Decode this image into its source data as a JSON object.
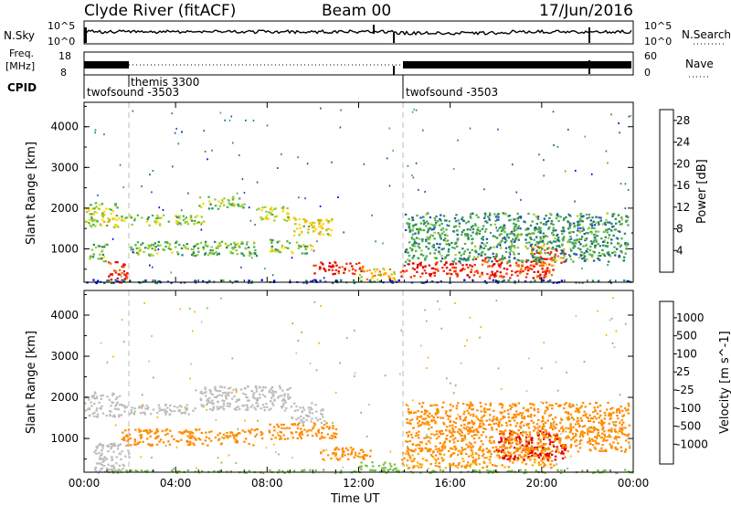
{
  "header": {
    "station": "Clyde River (fitACF)",
    "beam": "Beam 00",
    "date": "17/Jun/2016"
  },
  "strips": {
    "nsky_label": "N.Sky",
    "nsearch_label": "N.Search",
    "nsky_ticks": [
      "10^5",
      "10^0"
    ],
    "nsearch_ticks": [
      "10^5",
      "10^0"
    ],
    "freq_label": "Freq.",
    "freq_unit": "[MHz]",
    "freq_ticks": [
      "18",
      "8"
    ],
    "nave_label": "Nave",
    "nave_ticks": [
      "60",
      "0"
    ],
    "cpid_label": "CPID",
    "cpid_segments": [
      {
        "label": "twofsound -3503",
        "start_hour": 0.0
      },
      {
        "label": "themis 3300",
        "start_hour": 2.0
      },
      {
        "label": "twofsound -3503",
        "start_hour": 13.8
      }
    ]
  },
  "colors": {
    "power_scale": [
      "#0000ee",
      "#2255aa",
      "#2a8a5a",
      "#4caf50",
      "#9acd32",
      "#ffd700",
      "#ffa500",
      "#ff6a00",
      "#ff2a00",
      "#e00000"
    ],
    "velocity_scale": [
      "#1040c0",
      "#2e6fd6",
      "#2e8b57",
      "#7cc04c",
      "#bdbdbd",
      "#bdbdbd",
      "#ffb000",
      "#ff8c00",
      "#ff5a00",
      "#e00000"
    ]
  },
  "chart_data": [
    {
      "type": "heatmap",
      "title": "",
      "xlabel": "Time UT",
      "ylabel": "Slant Range [km]",
      "xlim": [
        0,
        24
      ],
      "ylim": [
        180,
        4600
      ],
      "x_ticks": [
        "00:00",
        "04:00",
        "08:00",
        "12:00",
        "16:00",
        "20:00",
        "00:00"
      ],
      "y_ticks": [
        1000,
        2000,
        3000,
        4000
      ],
      "colorbar": {
        "label": "Power [dB]",
        "ticks": [
          4,
          8,
          12,
          16,
          20,
          24,
          28
        ],
        "range": [
          0,
          30
        ]
      },
      "echo_bands": [
        {
          "t0": 0.0,
          "t1": 1.5,
          "r0": 1550,
          "r1": 2150,
          "value": 14
        },
        {
          "t0": 0.2,
          "t1": 1.0,
          "r0": 700,
          "r1": 1150,
          "value": 12
        },
        {
          "t0": 1.0,
          "t1": 1.9,
          "r0": 180,
          "r1": 750,
          "value": 26
        },
        {
          "t0": 1.6,
          "t1": 5.2,
          "r0": 1600,
          "r1": 1850,
          "value": 13
        },
        {
          "t0": 5.0,
          "t1": 7.0,
          "r0": 2000,
          "r1": 2300,
          "value": 12
        },
        {
          "t0": 2.0,
          "t1": 7.5,
          "r0": 850,
          "r1": 1200,
          "value": 11
        },
        {
          "t0": 7.5,
          "t1": 9.0,
          "r0": 1700,
          "r1": 2050,
          "value": 14
        },
        {
          "t0": 8.0,
          "t1": 10.0,
          "r0": 900,
          "r1": 1250,
          "value": 12
        },
        {
          "t0": 9.0,
          "t1": 10.8,
          "r0": 1350,
          "r1": 1800,
          "value": 16
        },
        {
          "t0": 10.0,
          "t1": 12.2,
          "r0": 400,
          "r1": 700,
          "value": 27
        },
        {
          "t0": 12.0,
          "t1": 13.6,
          "r0": 250,
          "r1": 550,
          "value": 18
        },
        {
          "t0": 13.8,
          "t1": 17.0,
          "r0": 320,
          "r1": 700,
          "value": 28
        },
        {
          "t0": 17.0,
          "t1": 20.5,
          "r0": 300,
          "r1": 800,
          "value": 26
        },
        {
          "t0": 19.5,
          "t1": 21.0,
          "r0": 600,
          "r1": 1100,
          "value": 22
        },
        {
          "t0": 14.0,
          "t1": 23.8,
          "r0": 700,
          "r1": 1900,
          "value": 9
        },
        {
          "t0": 0.0,
          "t1": 24.0,
          "r0": 180,
          "r1": 260,
          "value": 5
        }
      ]
    },
    {
      "type": "heatmap",
      "title": "",
      "xlabel": "Time UT",
      "ylabel": "Slant Range [km]",
      "xlim": [
        0,
        24
      ],
      "ylim": [
        180,
        4600
      ],
      "x_ticks": [
        "00:00",
        "04:00",
        "08:00",
        "12:00",
        "16:00",
        "20:00",
        "00:00"
      ],
      "y_ticks": [
        1000,
        2000,
        3000,
        4000
      ],
      "colorbar": {
        "label": "Velocity [m s^-1]",
        "ticks": [
          1000,
          500,
          100,
          25,
          -25,
          -100,
          -500,
          -1000
        ]
      },
      "echo_bands": [
        {
          "t0": 0.0,
          "t1": 1.6,
          "r0": 1550,
          "r1": 2150,
          "value": 0
        },
        {
          "t0": 1.6,
          "t1": 5.0,
          "r0": 1600,
          "r1": 1850,
          "value": 0
        },
        {
          "t0": 5.0,
          "t1": 9.0,
          "r0": 1700,
          "r1": 2300,
          "value": 0
        },
        {
          "t0": 9.0,
          "t1": 10.5,
          "r0": 1400,
          "r1": 1900,
          "value": 0
        },
        {
          "t0": 1.6,
          "t1": 7.8,
          "r0": 850,
          "r1": 1250,
          "value": -300
        },
        {
          "t0": 8.0,
          "t1": 11.0,
          "r0": 1000,
          "r1": 1400,
          "value": -300
        },
        {
          "t0": 10.3,
          "t1": 12.5,
          "r0": 500,
          "r1": 800,
          "value": -200
        },
        {
          "t0": 0.4,
          "t1": 2.0,
          "r0": 180,
          "r1": 900,
          "value": 0
        },
        {
          "t0": 12.0,
          "t1": 13.6,
          "r0": 200,
          "r1": 450,
          "value": 60
        },
        {
          "t0": 13.8,
          "t1": 20.5,
          "r0": 300,
          "r1": 800,
          "value": -120
        },
        {
          "t0": 18.0,
          "t1": 21.0,
          "r0": 500,
          "r1": 1200,
          "value": -600
        },
        {
          "t0": 14.0,
          "t1": 23.8,
          "r0": 700,
          "r1": 1900,
          "value": -150
        },
        {
          "t0": 0.0,
          "t1": 24.0,
          "r0": 180,
          "r1": 260,
          "value": 60
        }
      ]
    }
  ]
}
